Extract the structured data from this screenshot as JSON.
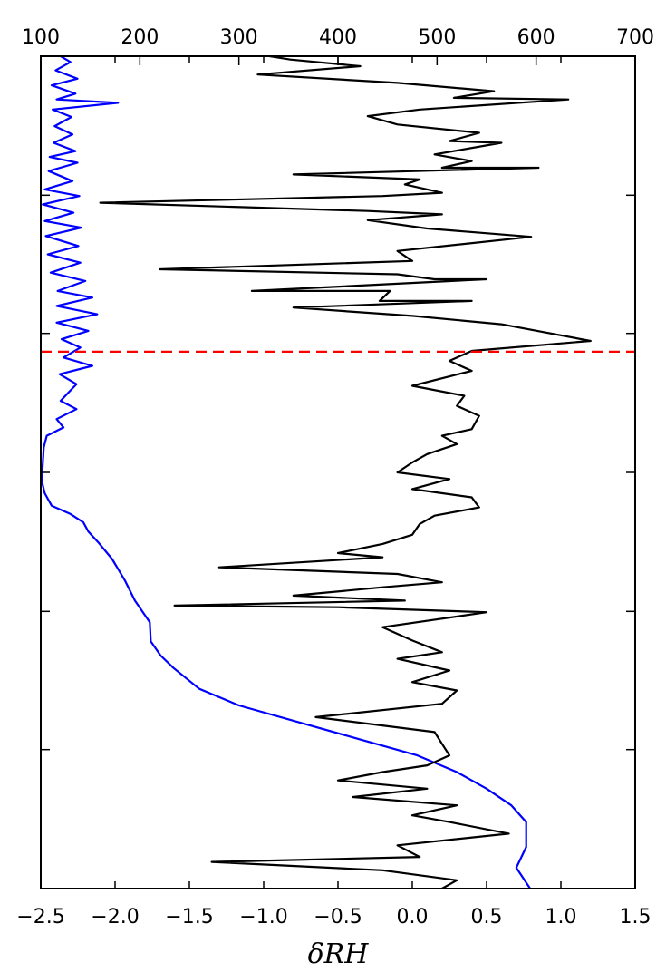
{
  "chart_data": {
    "type": "line",
    "xlabel": "δRH",
    "x_bottom": {
      "range": [
        -2.5,
        1.5
      ],
      "ticks": [
        -2.5,
        -2.0,
        -1.5,
        -1.0,
        -0.5,
        0.0,
        0.5,
        1.0,
        1.5
      ],
      "tick_labels": [
        "−2.5",
        "−2.0",
        "−1.5",
        "−1.0",
        "−0.5",
        "0.0",
        "0.5",
        "1.0",
        "1.5"
      ]
    },
    "x_top": {
      "range": [
        100,
        700
      ],
      "ticks": [
        100,
        200,
        300,
        400,
        500,
        600,
        700
      ],
      "tick_labels": [
        "100",
        "200",
        "300",
        "400",
        "500",
        "600",
        "700"
      ]
    },
    "y_axis": {
      "range": [
        1,
        0
      ],
      "ticks": [
        0.833,
        0.667,
        0.5,
        0.333,
        0.167
      ],
      "tick_labels": []
    },
    "reference_line": {
      "y": 0.355,
      "style": "dashed",
      "color": "#ff0000"
    },
    "series": [
      {
        "axis": "top",
        "color": "#0000ff",
        "points": [
          [
            120,
            0.0
          ],
          [
            130,
            0.007
          ],
          [
            115,
            0.017
          ],
          [
            137,
            0.027
          ],
          [
            111,
            0.035
          ],
          [
            135,
            0.045
          ],
          [
            116,
            0.052
          ],
          [
            178,
            0.056
          ],
          [
            112,
            0.064
          ],
          [
            131,
            0.073
          ],
          [
            114,
            0.084
          ],
          [
            132,
            0.094
          ],
          [
            113,
            0.104
          ],
          [
            135,
            0.114
          ],
          [
            109,
            0.121
          ],
          [
            137,
            0.128
          ],
          [
            108,
            0.138
          ],
          [
            132,
            0.15
          ],
          [
            104,
            0.16
          ],
          [
            139,
            0.168
          ],
          [
            102,
            0.178
          ],
          [
            133,
            0.188
          ],
          [
            104,
            0.198
          ],
          [
            141,
            0.206
          ],
          [
            105,
            0.216
          ],
          [
            138,
            0.228
          ],
          [
            107,
            0.238
          ],
          [
            140,
            0.248
          ],
          [
            110,
            0.26
          ],
          [
            145,
            0.27
          ],
          [
            117,
            0.282
          ],
          [
            152,
            0.29
          ],
          [
            116,
            0.3
          ],
          [
            157,
            0.31
          ],
          [
            116,
            0.32
          ],
          [
            148,
            0.33
          ],
          [
            121,
            0.34
          ],
          [
            140,
            0.35
          ],
          [
            123,
            0.362
          ],
          [
            152,
            0.372
          ],
          [
            119,
            0.382
          ],
          [
            136,
            0.394
          ],
          [
            128,
            0.404
          ],
          [
            120,
            0.414
          ],
          [
            136,
            0.424
          ],
          [
            116,
            0.436
          ],
          [
            123,
            0.446
          ],
          [
            106,
            0.456
          ],
          [
            103,
            0.47
          ],
          [
            102,
            0.49
          ],
          [
            101,
            0.51
          ],
          [
            104,
            0.525
          ],
          [
            111,
            0.54
          ],
          [
            130,
            0.55
          ],
          [
            143,
            0.56
          ],
          [
            148,
            0.571
          ],
          [
            158,
            0.584
          ],
          [
            172,
            0.604
          ],
          [
            185,
            0.63
          ],
          [
            195,
            0.654
          ],
          [
            210,
            0.68
          ],
          [
            211,
            0.703
          ],
          [
            221,
            0.72
          ],
          [
            234,
            0.735
          ],
          [
            260,
            0.76
          ],
          [
            300,
            0.78
          ],
          [
            360,
            0.8
          ],
          [
            420,
            0.82
          ],
          [
            480,
            0.84
          ],
          [
            520,
            0.86
          ],
          [
            550,
            0.88
          ],
          [
            575,
            0.9
          ],
          [
            590,
            0.92
          ],
          [
            590,
            0.95
          ],
          [
            580,
            0.975
          ],
          [
            594,
            1.0
          ]
        ]
      },
      {
        "axis": "bottom",
        "color": "#000000",
        "points": [
          [
            -0.96,
            0.0
          ],
          [
            -0.82,
            0.004
          ],
          [
            -0.35,
            0.012
          ],
          [
            -1.04,
            0.022
          ],
          [
            -0.1,
            0.032
          ],
          [
            0.55,
            0.042
          ],
          [
            0.28,
            0.05
          ],
          [
            1.05,
            0.052
          ],
          [
            0.05,
            0.064
          ],
          [
            -0.3,
            0.072
          ],
          [
            -0.1,
            0.082
          ],
          [
            0.45,
            0.092
          ],
          [
            0.25,
            0.102
          ],
          [
            0.6,
            0.104
          ],
          [
            0.15,
            0.118
          ],
          [
            0.4,
            0.126
          ],
          [
            0.2,
            0.134
          ],
          [
            0.85,
            0.134
          ],
          [
            -0.8,
            0.142
          ],
          [
            0.05,
            0.148
          ],
          [
            -0.05,
            0.154
          ],
          [
            0.2,
            0.164
          ],
          [
            -0.2,
            0.168
          ],
          [
            -2.1,
            0.176
          ],
          [
            -0.3,
            0.186
          ],
          [
            0.2,
            0.19
          ],
          [
            -0.3,
            0.197
          ],
          [
            0.1,
            0.207
          ],
          [
            0.8,
            0.217
          ],
          [
            -0.1,
            0.234
          ],
          [
            0.0,
            0.246
          ],
          [
            -1.7,
            0.256
          ],
          [
            -0.1,
            0.262
          ],
          [
            0.15,
            0.268
          ],
          [
            0.5,
            0.268
          ],
          [
            -1.08,
            0.282
          ],
          [
            -0.15,
            0.282
          ],
          [
            -0.22,
            0.294
          ],
          [
            0.4,
            0.294
          ],
          [
            -0.8,
            0.302
          ],
          [
            0.0,
            0.312
          ],
          [
            0.6,
            0.322
          ],
          [
            1.2,
            0.342
          ],
          [
            0.4,
            0.354
          ],
          [
            0.25,
            0.366
          ],
          [
            0.4,
            0.378
          ],
          [
            0.0,
            0.396
          ],
          [
            0.35,
            0.408
          ],
          [
            0.3,
            0.42
          ],
          [
            0.45,
            0.432
          ],
          [
            0.4,
            0.448
          ],
          [
            0.2,
            0.456
          ],
          [
            0.3,
            0.466
          ],
          [
            0.1,
            0.478
          ],
          [
            0.0,
            0.488
          ],
          [
            -0.1,
            0.5
          ],
          [
            0.25,
            0.508
          ],
          [
            0.0,
            0.52
          ],
          [
            0.4,
            0.53
          ],
          [
            0.45,
            0.542
          ],
          [
            0.15,
            0.552
          ],
          [
            0.05,
            0.562
          ],
          [
            0.0,
            0.575
          ],
          [
            -0.2,
            0.586
          ],
          [
            -0.5,
            0.597
          ],
          [
            -0.2,
            0.602
          ],
          [
            -1.3,
            0.614
          ],
          [
            -0.1,
            0.622
          ],
          [
            0.2,
            0.632
          ],
          [
            -0.2,
            0.638
          ],
          [
            -0.8,
            0.648
          ],
          [
            -0.05,
            0.654
          ],
          [
            -1.6,
            0.66
          ],
          [
            -0.5,
            0.662
          ],
          [
            0.5,
            0.668
          ],
          [
            -0.2,
            0.686
          ],
          [
            0.0,
            0.702
          ],
          [
            0.2,
            0.716
          ],
          [
            -0.1,
            0.724
          ],
          [
            0.25,
            0.738
          ],
          [
            0.0,
            0.752
          ],
          [
            0.3,
            0.762
          ],
          [
            0.2,
            0.778
          ],
          [
            -0.65,
            0.794
          ],
          [
            0.15,
            0.812
          ],
          [
            0.2,
            0.826
          ],
          [
            0.25,
            0.84
          ],
          [
            0.1,
            0.852
          ],
          [
            -0.2,
            0.86
          ],
          [
            -0.5,
            0.87
          ],
          [
            0.1,
            0.88
          ],
          [
            -0.4,
            0.89
          ],
          [
            0.3,
            0.9
          ],
          [
            0.0,
            0.912
          ],
          [
            0.25,
            0.92
          ],
          [
            0.65,
            0.934
          ],
          [
            -0.1,
            0.948
          ],
          [
            0.05,
            0.962
          ],
          [
            -1.35,
            0.968
          ],
          [
            -0.2,
            0.978
          ],
          [
            0.3,
            0.99
          ],
          [
            0.2,
            1.0
          ]
        ]
      }
    ]
  }
}
